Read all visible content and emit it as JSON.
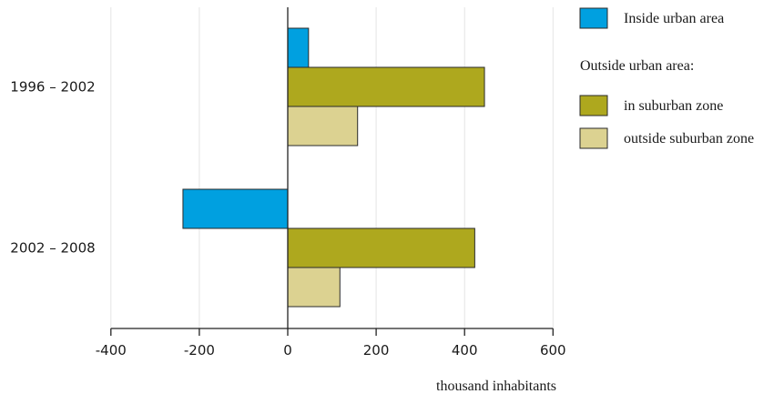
{
  "chart_data": {
    "type": "bar",
    "orientation": "horizontal",
    "categories": [
      "1996 – 2002",
      "2002 – 2008"
    ],
    "series": [
      {
        "name": "Inside urban area",
        "values": [
          47,
          -237
        ],
        "color": "#00a0e0"
      },
      {
        "name": "in suburban zone",
        "values": [
          445,
          423
        ],
        "color": "#aea81e"
      },
      {
        "name": "outside suburban zone",
        "values": [
          158,
          118
        ],
        "color": "#dcd291"
      }
    ],
    "legend_heading": "Outside urban area:",
    "legend_placement": "right",
    "xlabel": "thousand inhabitants",
    "xlim": [
      -400,
      600
    ],
    "xticks": [
      -400,
      -200,
      0,
      200,
      400,
      600
    ],
    "grid": "vertical"
  }
}
